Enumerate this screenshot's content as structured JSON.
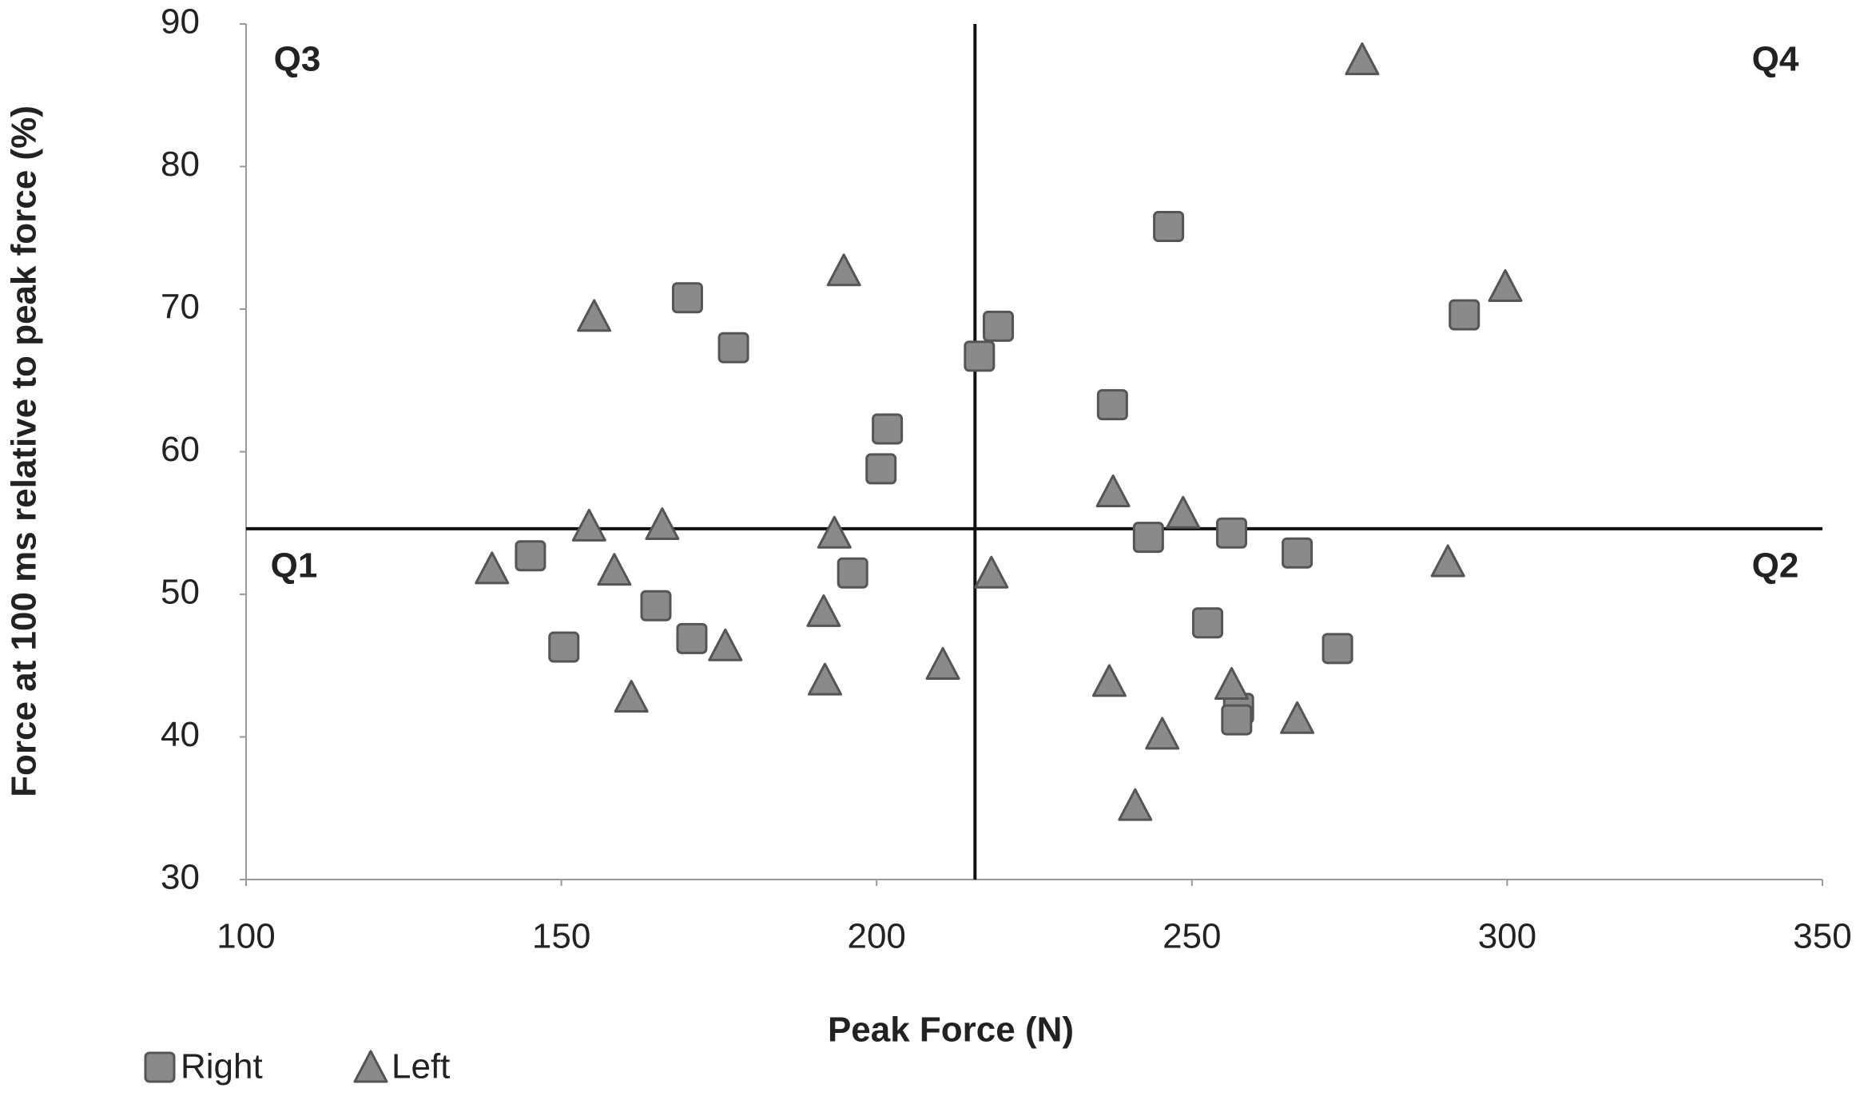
{
  "chart_data": {
    "type": "scatter",
    "x_label": "Peak Force (N)",
    "y_label": "Force at 100 ms relative to peak force (%)",
    "xlim": [
      100,
      350
    ],
    "xticks": [
      100,
      150,
      200,
      250,
      300,
      350
    ],
    "ylim": [
      30,
      90
    ],
    "yticks": [
      30,
      40,
      50,
      60,
      70,
      80,
      90
    ],
    "quadrant_lines": {
      "x": 215.6,
      "y": 54.6
    },
    "quadrant_labels": {
      "top_left": "Q3",
      "top_right": "Q4",
      "bottom_left": "Q1",
      "bottom_right": "Q2"
    },
    "series": [
      {
        "name": "Right",
        "marker": "square",
        "color": "#8a8a8a",
        "x": [
          145.1,
          150.4,
          170.0,
          177.3,
          165.0,
          170.7,
          196.2,
          201.7,
          200.7,
          216.3,
          219.3,
          246.3,
          237.4,
          243.1,
          256.3,
          252.5,
          257.4,
          257.1,
          266.7,
          273.1,
          293.2
        ],
        "values": [
          52.7,
          46.3,
          70.8,
          67.3,
          49.2,
          46.9,
          51.5,
          61.6,
          58.8,
          66.7,
          68.8,
          75.8,
          63.3,
          54.0,
          54.3,
          48.0,
          42.0,
          41.2,
          52.9,
          46.2,
          69.6
        ]
      },
      {
        "name": "Left",
        "marker": "triangle",
        "color": "#8a8a8a",
        "x": [
          139.0,
          155.2,
          154.4,
          158.4,
          161.1,
          166.0,
          176.0,
          193.3,
          191.6,
          191.8,
          194.8,
          210.5,
          218.2,
          277.0,
          299.7,
          290.6,
          237.5,
          248.6,
          236.9,
          245.3,
          241.0,
          256.3,
          266.7
        ],
        "values": [
          51.8,
          69.5,
          54.8,
          51.7,
          42.8,
          54.9,
          46.4,
          54.3,
          48.8,
          44.0,
          72.7,
          45.1,
          51.5,
          87.5,
          71.6,
          52.3,
          57.2,
          55.7,
          43.9,
          40.2,
          35.2,
          43.7,
          41.3
        ]
      }
    ]
  }
}
